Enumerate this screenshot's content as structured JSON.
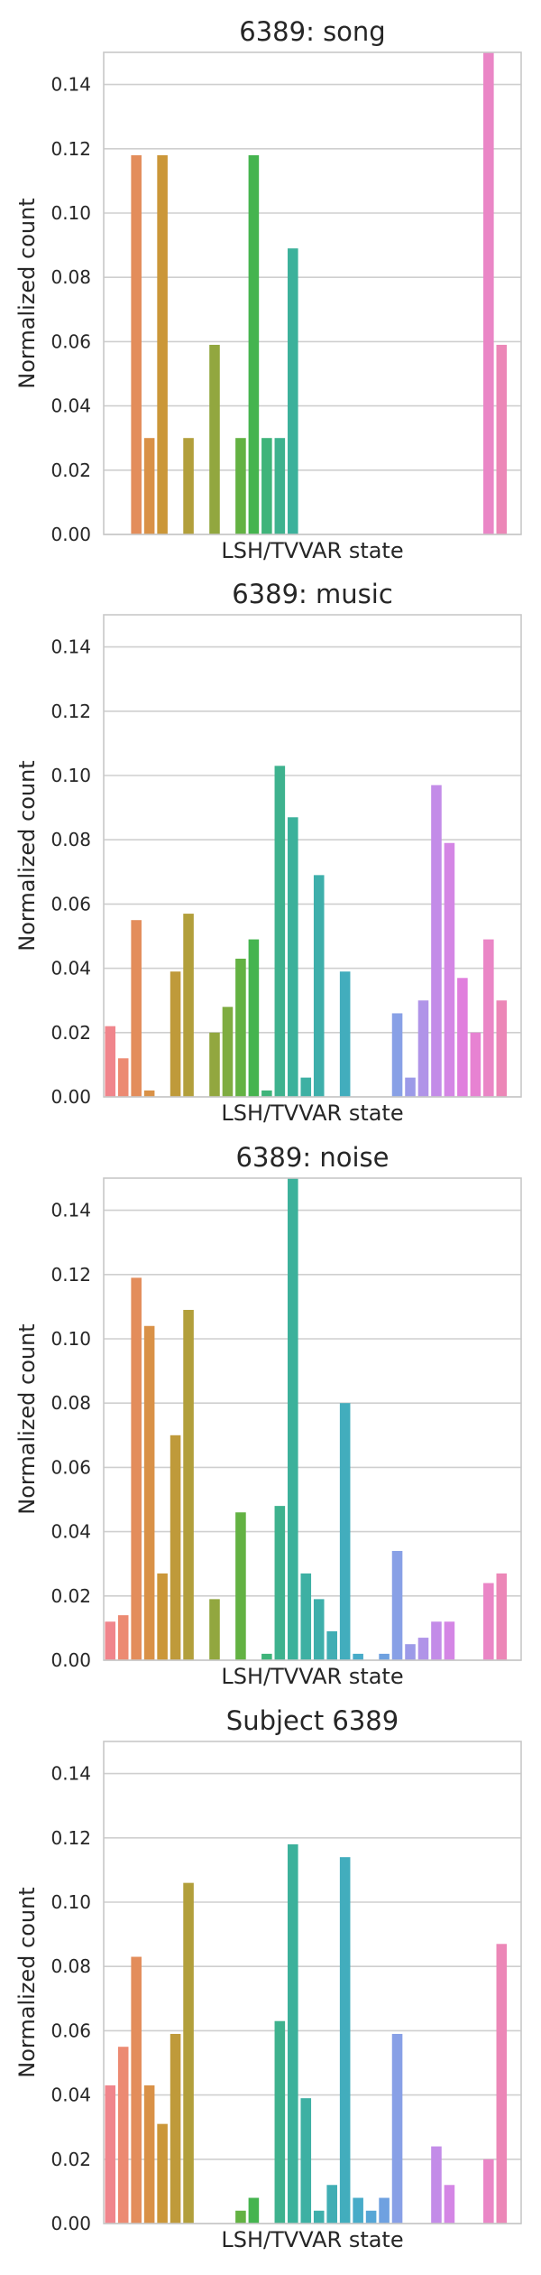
{
  "chart_data": [
    {
      "type": "bar",
      "title": "6389: song",
      "xlabel": "LSH/TVVAR state",
      "ylabel": "Normalized count",
      "ylim": [
        0,
        0.15
      ],
      "yticks": [
        "0.00",
        "0.02",
        "0.04",
        "0.06",
        "0.08",
        "0.10",
        "0.12",
        "0.14"
      ],
      "grid": "horizontal",
      "values": [
        0,
        0,
        0.118,
        0.03,
        0.118,
        0,
        0.03,
        0,
        0.059,
        0,
        0.03,
        0.118,
        0.03,
        0.03,
        0.089,
        0,
        0,
        0,
        0,
        0,
        0,
        0,
        0,
        0,
        0,
        0,
        0,
        0,
        0,
        0.15,
        0.059,
        0
      ]
    },
    {
      "type": "bar",
      "title": "6389: music",
      "xlabel": "LSH/TVVAR state",
      "ylabel": "Normalized count",
      "ylim": [
        0,
        0.15
      ],
      "yticks": [
        "0.00",
        "0.02",
        "0.04",
        "0.06",
        "0.08",
        "0.10",
        "0.12",
        "0.14"
      ],
      "grid": "horizontal",
      "values": [
        0.022,
        0.012,
        0.055,
        0.002,
        0,
        0.039,
        0.057,
        0,
        0.02,
        0.028,
        0.043,
        0.049,
        0.002,
        0.103,
        0.087,
        0.006,
        0.069,
        0,
        0.039,
        0,
        0,
        0,
        0.026,
        0.006,
        0.03,
        0.097,
        0.079,
        0.037,
        0.02,
        0.049,
        0.03,
        0
      ]
    },
    {
      "type": "bar",
      "title": "6389: noise",
      "xlabel": "LSH/TVVAR state",
      "ylabel": "Normalized count",
      "ylim": [
        0,
        0.15
      ],
      "yticks": [
        "0.00",
        "0.02",
        "0.04",
        "0.06",
        "0.08",
        "0.10",
        "0.12",
        "0.14"
      ],
      "grid": "horizontal",
      "values": [
        0.012,
        0.014,
        0.119,
        0.104,
        0.027,
        0.07,
        0.109,
        0,
        0.019,
        0,
        0.046,
        0,
        0.002,
        0.048,
        0.15,
        0.027,
        0.019,
        0.009,
        0.08,
        0.002,
        0,
        0.002,
        0.034,
        0.005,
        0.007,
        0.012,
        0.012,
        0,
        0,
        0.024,
        0.027,
        0
      ]
    },
    {
      "type": "bar",
      "title": "Subject 6389",
      "xlabel": "LSH/TVVAR state",
      "ylabel": "Normalized count",
      "ylim": [
        0,
        0.15
      ],
      "yticks": [
        "0.00",
        "0.02",
        "0.04",
        "0.06",
        "0.08",
        "0.10",
        "0.12",
        "0.14"
      ],
      "grid": "horizontal",
      "values": [
        0.043,
        0.055,
        0.083,
        0.043,
        0.031,
        0.059,
        0.106,
        0,
        0,
        0,
        0.004,
        0.008,
        0,
        0.063,
        0.118,
        0.039,
        0.004,
        0.012,
        0.114,
        0.008,
        0.004,
        0.008,
        0.059,
        0,
        0,
        0.024,
        0.012,
        0,
        0,
        0.02,
        0.087,
        0
      ]
    }
  ],
  "palette": [
    "#f0858c",
    "#ec8a72",
    "#e38d5b",
    "#d99147",
    "#cb9739",
    "#bf9a3a",
    "#b29f3b",
    "#a3a33d",
    "#92a73f",
    "#7fac41",
    "#63b243",
    "#45b44f",
    "#3fb47a",
    "#3eb28e",
    "#3cb19b",
    "#3db0a3",
    "#3eafab",
    "#40aeb4",
    "#42adbd",
    "#47abc8",
    "#56a6d6",
    "#6fa1e0",
    "#88a0e6",
    "#9c9ae8",
    "#b094e8",
    "#c38ce8",
    "#d486e5",
    "#e07fdd",
    "#e782d2",
    "#ea86c6",
    "#ec87b7",
    "#ee88a8"
  ]
}
